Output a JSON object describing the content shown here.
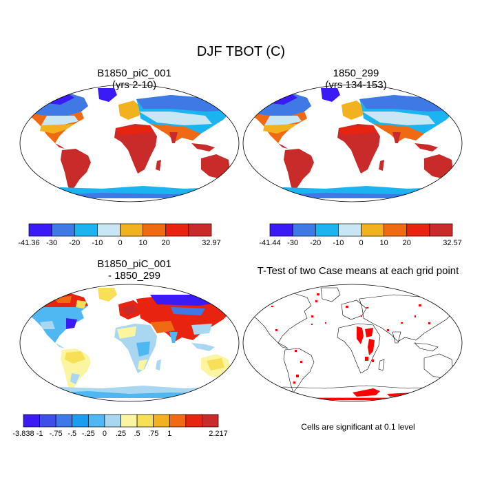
{
  "title": "DJF TBOT (C)",
  "panels": [
    {
      "title1": "B1850_piC_001",
      "title2": "(yrs 2-10)"
    },
    {
      "title1": "1850_299",
      "title2": "(yrs 134-153)"
    },
    {
      "title1": "B1850_piC_001",
      "title2": "- 1850_299"
    },
    {
      "title1": "T-Test of two Case means at each grid point",
      "title2": ""
    }
  ],
  "colorbars": [
    {
      "labels": [
        "-41.36",
        "-30",
        "-20",
        "-10",
        "0",
        "10",
        "20",
        "32.97"
      ],
      "colors": [
        "#3a1bf5",
        "#3f79e6",
        "#1bb3f0",
        "#c8e6f3",
        "#f2b21f",
        "#f06a13",
        "#e8230f",
        "#c92a2a"
      ]
    },
    {
      "labels": [
        "-41.44",
        "-30",
        "-20",
        "-10",
        "0",
        "10",
        "20",
        "32.57"
      ],
      "colors": [
        "#3a1bf5",
        "#3f79e6",
        "#1bb3f0",
        "#c8e6f3",
        "#f2b21f",
        "#f06a13",
        "#e8230f",
        "#c92a2a"
      ]
    },
    {
      "labels": [
        "-3.838",
        "-1",
        "-.75",
        "-.5",
        "-.25",
        "0",
        ".25",
        ".5",
        ".75",
        "1",
        "2.217"
      ],
      "colors": [
        "#3a1bf5",
        "#3f4ee8",
        "#3f79e6",
        "#1b9df0",
        "#4fb8f2",
        "#a9d6f0",
        "#fbf5a1",
        "#f7df58",
        "#f2b21f",
        "#f06a13",
        "#e8230f",
        "#c92a2a"
      ]
    }
  ],
  "note": "Cells are significant at 0.1 level"
}
